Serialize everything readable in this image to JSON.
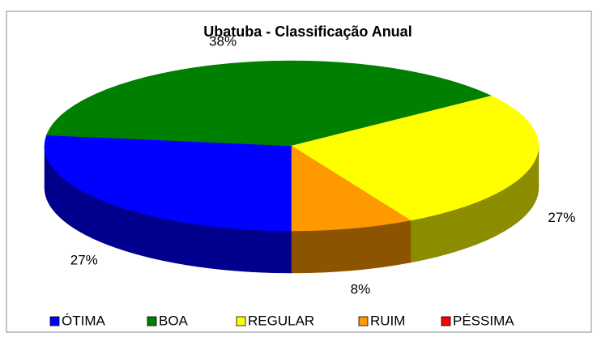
{
  "chart_data": {
    "type": "pie",
    "title": "Ubatuba - Classificação Anual",
    "categories": [
      "ÓTIMA",
      "BOA",
      "REGULAR",
      "RUIM",
      "PÉSSIMA"
    ],
    "values": [
      27,
      38,
      27,
      8,
      0
    ],
    "value_labels": [
      "27%",
      "38%",
      "27%",
      "8%",
      null
    ],
    "colors": [
      "#0000ff",
      "#008000",
      "#ffff00",
      "#ff9900",
      "#ff0000"
    ],
    "legend": "bottom"
  }
}
